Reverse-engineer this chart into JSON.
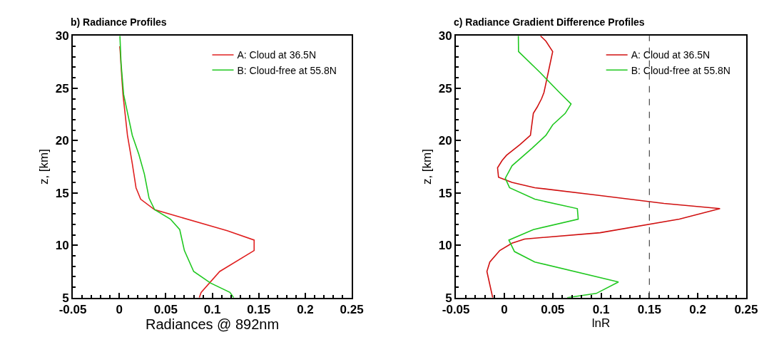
{
  "chart_data": [
    {
      "type": "line",
      "title": "b) Radiance Profiles",
      "xlabel": "Radiances @ 892nm",
      "ylabel": "z, [km]",
      "xlim": [
        -0.05,
        0.25
      ],
      "xticks": [
        -0.05,
        0,
        0.05,
        0.1,
        0.15,
        0.2,
        0.25
      ],
      "ylim": [
        5,
        30
      ],
      "yticks": [
        5,
        10,
        15,
        20,
        25,
        30
      ],
      "legend": "top right",
      "series": [
        {
          "name": "A: Cloud at 36.5N",
          "color": "#e02020",
          "x": [
            0.0005,
            0.001,
            0.0028,
            0.004,
            0.0088,
            0.014,
            0.018,
            0.023,
            0.038,
            0.065,
            0.116,
            0.145,
            0.145,
            0.108,
            0.088,
            0.086
          ],
          "values": [
            29.0,
            28.5,
            25.9,
            24.4,
            20.5,
            17.8,
            15.5,
            14.4,
            13.4,
            12.7,
            11.4,
            10.5,
            9.5,
            7.5,
            5.5,
            5.0
          ]
        },
        {
          "name": "B: Cloud-free at 55.8N",
          "color": "#20c820",
          "x": [
            0.0007,
            0.0019,
            0.0047,
            0.014,
            0.021,
            0.027,
            0.032,
            0.038,
            0.055,
            0.065,
            0.07,
            0.08,
            0.098,
            0.119,
            0.123
          ],
          "values": [
            30,
            27.4,
            24.4,
            20.5,
            18.7,
            16.8,
            14.5,
            13.4,
            12.5,
            11.5,
            9.5,
            7.5,
            6.4,
            5.5,
            5.0
          ]
        }
      ]
    },
    {
      "type": "line",
      "title": "c) Radiance Gradient Difference Profiles",
      "xlabel": "lnR",
      "ylabel": "z, [km]",
      "xlim": [
        -0.05,
        0.25
      ],
      "xticks": [
        -0.05,
        0,
        0.05,
        0.1,
        0.15,
        0.2,
        0.25
      ],
      "ylim": [
        5,
        30
      ],
      "yticks": [
        5,
        10,
        15,
        20,
        25,
        30
      ],
      "legend": "top right",
      "ref_lines": [
        {
          "axis": "x",
          "value": 0.15,
          "color": "#555555",
          "line_style": "dashed"
        }
      ],
      "series": [
        {
          "name": "A: Cloud at 36.5N",
          "color": "#d01010",
          "x": [
            0.0374,
            0.043,
            0.05,
            0.047,
            0.041,
            0.0385,
            0.034,
            0.03,
            0.027,
            0.016,
            0.0023,
            -0.0023,
            -0.007,
            -0.006,
            0.008,
            0.0315,
            0.095,
            0.165,
            0.223,
            0.181,
            0.099,
            0.021,
            0.008,
            -0.0047,
            -0.015,
            -0.018,
            -0.012
          ],
          "values": [
            30,
            29.5,
            28.5,
            27.2,
            24.6,
            24.0,
            23.2,
            22.6,
            20.5,
            19.6,
            18.6,
            18.1,
            17.4,
            16.5,
            16.0,
            15.5,
            14.8,
            14.0,
            13.5,
            12.5,
            11.2,
            10.6,
            10.2,
            9.5,
            8.4,
            7.5,
            5.0
          ]
        },
        {
          "name": "B: Cloud-free at 55.8N",
          "color": "#20c820",
          "x": [
            0.0145,
            0.0147,
            0.037,
            0.057,
            0.069,
            0.063,
            0.05,
            0.043,
            0.029,
            0.008,
            0.001,
            0.0054,
            0.0315,
            0.0755,
            0.0764,
            0.03,
            0.0047,
            0.0105,
            0.0315,
            0.118,
            0.095,
            0.065
          ],
          "values": [
            30,
            28.5,
            26.5,
            24.6,
            23.5,
            22.6,
            21.5,
            20.5,
            19.3,
            17.6,
            16.4,
            15.5,
            14.4,
            13.5,
            12.5,
            11.5,
            10.5,
            9.4,
            8.4,
            6.5,
            5.4,
            5.0
          ]
        }
      ]
    }
  ]
}
